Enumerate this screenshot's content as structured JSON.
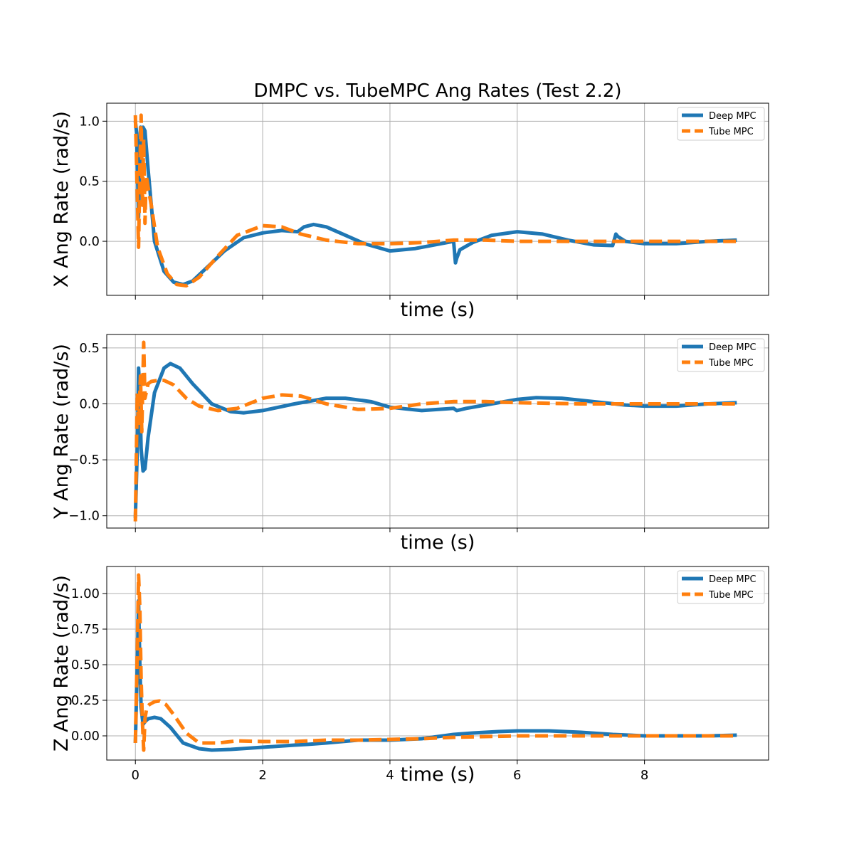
{
  "figure": {
    "title": "DMPC vs. TubeMPC Ang Rates (Test 2.2)"
  },
  "colors": {
    "deep": "#1f77b4",
    "tube": "#ff7f0e",
    "grid": "#b0b0b0",
    "axes": "#000000"
  },
  "chart_data": [
    {
      "type": "line",
      "title": "DMPC vs. TubeMPC Ang Rates (Test 2.2)",
      "xlabel": "time (s)",
      "ylabel": "X Ang Rate (rad/s)",
      "xlim": [
        -0.45,
        9.95
      ],
      "ylim": [
        -0.45,
        1.15
      ],
      "xticks": [
        0,
        2,
        4,
        6,
        8
      ],
      "xticklabels_visible": false,
      "yticks": [
        0.0,
        0.5,
        1.0
      ],
      "yticklabels": [
        "0.0",
        "0.5",
        "1.0"
      ],
      "grid": true,
      "legend": "top-right",
      "series": [
        {
          "name": "Deep MPC",
          "style": "solid",
          "x": [
            0,
            0.02,
            0.05,
            0.08,
            0.1,
            0.12,
            0.15,
            0.2,
            0.3,
            0.45,
            0.6,
            0.75,
            0.9,
            1.1,
            1.4,
            1.7,
            2.0,
            2.3,
            2.55,
            2.65,
            2.8,
            3.0,
            3.3,
            3.6,
            4.0,
            4.4,
            4.8,
            5.0,
            5.03,
            5.05,
            5.1,
            5.3,
            5.6,
            6.0,
            6.4,
            6.8,
            7.2,
            7.5,
            7.55,
            7.58,
            7.7,
            8.0,
            8.5,
            9.0,
            9.45
          ],
          "y": [
            1.0,
            0.9,
            0.2,
            0.95,
            0.8,
            0.95,
            0.92,
            0.6,
            0.0,
            -0.25,
            -0.34,
            -0.36,
            -0.33,
            -0.23,
            -0.08,
            0.03,
            0.07,
            0.09,
            0.08,
            0.12,
            0.14,
            0.12,
            0.05,
            -0.02,
            -0.08,
            -0.06,
            -0.02,
            0.0,
            -0.18,
            -0.14,
            -0.07,
            -0.01,
            0.05,
            0.08,
            0.06,
            0.01,
            -0.03,
            -0.035,
            0.06,
            0.04,
            0.0,
            -0.02,
            -0.02,
            0.0,
            0.01
          ]
        },
        {
          "name": "Tube MPC",
          "style": "dashed",
          "x": [
            0,
            0.03,
            0.05,
            0.07,
            0.09,
            0.11,
            0.13,
            0.15,
            0.17,
            0.2,
            0.25,
            0.35,
            0.5,
            0.65,
            0.8,
            1.0,
            1.3,
            1.6,
            2.0,
            2.3,
            2.6,
            3.0,
            3.5,
            4.0,
            4.5,
            5.0,
            5.5,
            6.0,
            6.5,
            7.0,
            8.0,
            9.0,
            9.45
          ],
          "y": [
            1.05,
            0.4,
            -0.05,
            0.6,
            1.05,
            0.3,
            0.85,
            0.15,
            0.55,
            0.45,
            0.3,
            -0.05,
            -0.27,
            -0.36,
            -0.37,
            -0.3,
            -0.12,
            0.05,
            0.13,
            0.12,
            0.06,
            0.01,
            -0.02,
            -0.02,
            -0.01,
            0.01,
            0.01,
            0.0,
            0.0,
            0.0,
            0.0,
            0.0,
            0.0
          ]
        }
      ]
    },
    {
      "type": "line",
      "xlabel": "time (s)",
      "ylabel": "Y Ang Rate (rad/s)",
      "xlim": [
        -0.45,
        9.95
      ],
      "ylim": [
        -1.11,
        0.62
      ],
      "xticks": [
        0,
        2,
        4,
        6,
        8
      ],
      "xticklabels_visible": false,
      "yticks": [
        -1.0,
        -0.5,
        0.0,
        0.5
      ],
      "yticklabels": [
        "−1.0",
        "−0.5",
        "0.0",
        "0.5"
      ],
      "grid": true,
      "legend": "top-right",
      "series": [
        {
          "name": "Deep MPC",
          "style": "solid",
          "x": [
            0,
            0.03,
            0.05,
            0.07,
            0.09,
            0.12,
            0.15,
            0.2,
            0.3,
            0.45,
            0.55,
            0.7,
            0.9,
            1.2,
            1.5,
            1.7,
            2.0,
            2.5,
            3.0,
            3.3,
            3.7,
            4.0,
            4.5,
            5.0,
            5.05,
            5.2,
            5.6,
            6.0,
            6.3,
            6.7,
            7.2,
            7.7,
            8.0,
            8.5,
            9.0,
            9.45
          ],
          "y": [
            -1.02,
            -0.4,
            0.32,
            0.1,
            -0.4,
            -0.6,
            -0.58,
            -0.3,
            0.1,
            0.32,
            0.36,
            0.32,
            0.18,
            0.0,
            -0.07,
            -0.08,
            -0.06,
            0.0,
            0.05,
            0.05,
            0.02,
            -0.03,
            -0.06,
            -0.04,
            -0.06,
            -0.04,
            0.0,
            0.04,
            0.055,
            0.05,
            0.02,
            -0.01,
            -0.02,
            -0.02,
            0.0,
            0.01
          ]
        },
        {
          "name": "Tube MPC",
          "style": "dashed",
          "x": [
            0,
            0.03,
            0.05,
            0.08,
            0.1,
            0.13,
            0.15,
            0.17,
            0.2,
            0.25,
            0.35,
            0.45,
            0.6,
            0.8,
            1.0,
            1.3,
            1.6,
            2.0,
            2.3,
            2.6,
            3.0,
            3.5,
            4.0,
            4.5,
            5.0,
            5.5,
            6.0,
            7.0,
            8.0,
            9.0,
            9.45
          ],
          "y": [
            -1.05,
            0.1,
            -0.2,
            0.25,
            -0.25,
            0.55,
            0.05,
            0.1,
            0.18,
            0.2,
            0.21,
            0.21,
            0.17,
            0.05,
            -0.02,
            -0.06,
            -0.04,
            0.05,
            0.08,
            0.07,
            0.0,
            -0.05,
            -0.04,
            0.0,
            0.02,
            0.02,
            0.01,
            0.0,
            0.0,
            0.0,
            0.0
          ]
        }
      ]
    },
    {
      "type": "line",
      "xlabel": "time (s)",
      "ylabel": "Z Ang Rate (rad/s)",
      "xlim": [
        -0.45,
        9.95
      ],
      "ylim": [
        -0.17,
        1.19
      ],
      "xticks": [
        0,
        2,
        4,
        6,
        8
      ],
      "xticklabels": [
        "0",
        "2",
        "4",
        "6",
        "8"
      ],
      "yticks": [
        0.0,
        0.25,
        0.5,
        0.75,
        1.0
      ],
      "yticklabels": [
        "0.00",
        "0.25",
        "0.50",
        "0.75",
        "1.00"
      ],
      "grid": true,
      "legend": "top-right",
      "series": [
        {
          "name": "Deep MPC",
          "style": "solid",
          "x": [
            0,
            0.03,
            0.05,
            0.07,
            0.09,
            0.12,
            0.15,
            0.2,
            0.3,
            0.4,
            0.55,
            0.75,
            1.0,
            1.2,
            1.5,
            2.0,
            2.5,
            2.7,
            3.0,
            3.5,
            4.0,
            4.5,
            5.0,
            5.3,
            5.7,
            6.0,
            6.5,
            7.0,
            7.5,
            8.0,
            8.5,
            9.0,
            9.45
          ],
          "y": [
            -0.05,
            0.5,
            0.95,
            0.5,
            0.2,
            0.08,
            0.1,
            0.12,
            0.13,
            0.12,
            0.06,
            -0.05,
            -0.09,
            -0.1,
            -0.095,
            -0.08,
            -0.065,
            -0.06,
            -0.05,
            -0.03,
            -0.03,
            -0.02,
            0.01,
            0.02,
            0.03,
            0.035,
            0.035,
            0.025,
            0.01,
            0.0,
            0.0,
            0.0,
            0.005
          ]
        },
        {
          "name": "Tube MPC",
          "style": "dashed",
          "x": [
            0,
            0.03,
            0.05,
            0.07,
            0.09,
            0.11,
            0.13,
            0.15,
            0.18,
            0.22,
            0.3,
            0.38,
            0.48,
            0.6,
            0.8,
            1.0,
            1.3,
            1.6,
            2.0,
            2.5,
            3.0,
            3.5,
            4.0,
            4.5,
            5.0,
            6.0,
            7.0,
            8.0,
            9.0,
            9.45
          ],
          "y": [
            -0.05,
            0.6,
            1.13,
            0.9,
            0.4,
            0.1,
            -0.1,
            0.12,
            0.2,
            0.22,
            0.24,
            0.245,
            0.22,
            0.15,
            0.02,
            -0.05,
            -0.05,
            -0.035,
            -0.04,
            -0.04,
            -0.03,
            -0.03,
            -0.025,
            -0.02,
            -0.01,
            0.0,
            0.0,
            0.0,
            0.0,
            0.0
          ]
        }
      ]
    }
  ]
}
